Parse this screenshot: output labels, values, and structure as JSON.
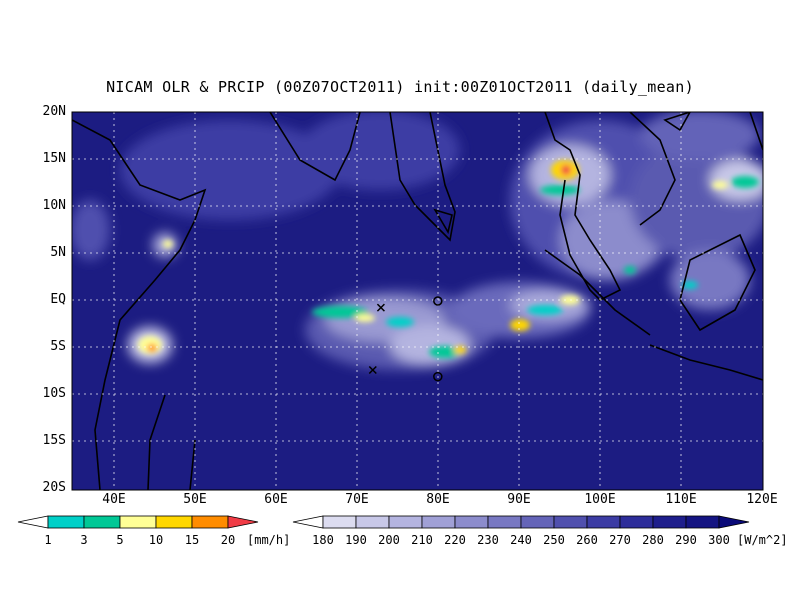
{
  "title": "NICAM OLR & PRCIP (00Z07OCT2011) init:00Z01OCT2011 (daily_mean)",
  "y_axis_labels": [
    "20N",
    "15N",
    "10N",
    "5N",
    "EQ",
    "5S",
    "10S",
    "15S",
    "20S"
  ],
  "x_axis_labels": [
    "40E",
    "50E",
    "60E",
    "70E",
    "80E",
    "90E",
    "100E",
    "110E",
    "120E"
  ],
  "precip_colorbar": {
    "levels": [
      "1",
      "3",
      "5",
      "10",
      "15",
      "20"
    ],
    "unit": "[mm/h]",
    "colors": [
      "#ffffff",
      "#00d0c8",
      "#00c896",
      "#ffff96",
      "#ffd700",
      "#ff8c00",
      "#f03c46"
    ]
  },
  "olr_colorbar": {
    "levels": [
      "180",
      "190",
      "200",
      "210",
      "220",
      "230",
      "240",
      "250",
      "260",
      "270",
      "280",
      "290",
      "300"
    ],
    "unit": "[W/m^2]",
    "colors": [
      "#ffffff",
      "#dcdcf0",
      "#c8c8e8",
      "#b4b4e0",
      "#a0a0d6",
      "#8c8ccc",
      "#7878c2",
      "#6464b8",
      "#5050ae",
      "#3c3ca4",
      "#2d2d9a",
      "#1e1e8c",
      "#141482",
      "#0a0a78"
    ]
  },
  "map": {
    "lon_range": [
      35,
      120
    ],
    "lat_range": [
      -20,
      20
    ],
    "grid": true,
    "background_color": "#1c1c82",
    "markers": [
      {
        "symbol": "x",
        "lon": 73,
        "lat": -0.7
      },
      {
        "symbol": "x",
        "lon": 72,
        "lat": -7.3
      },
      {
        "symbol": "o",
        "lon": 80,
        "lat": 0
      },
      {
        "symbol": "o",
        "lon": 80,
        "lat": -8
      }
    ]
  }
}
